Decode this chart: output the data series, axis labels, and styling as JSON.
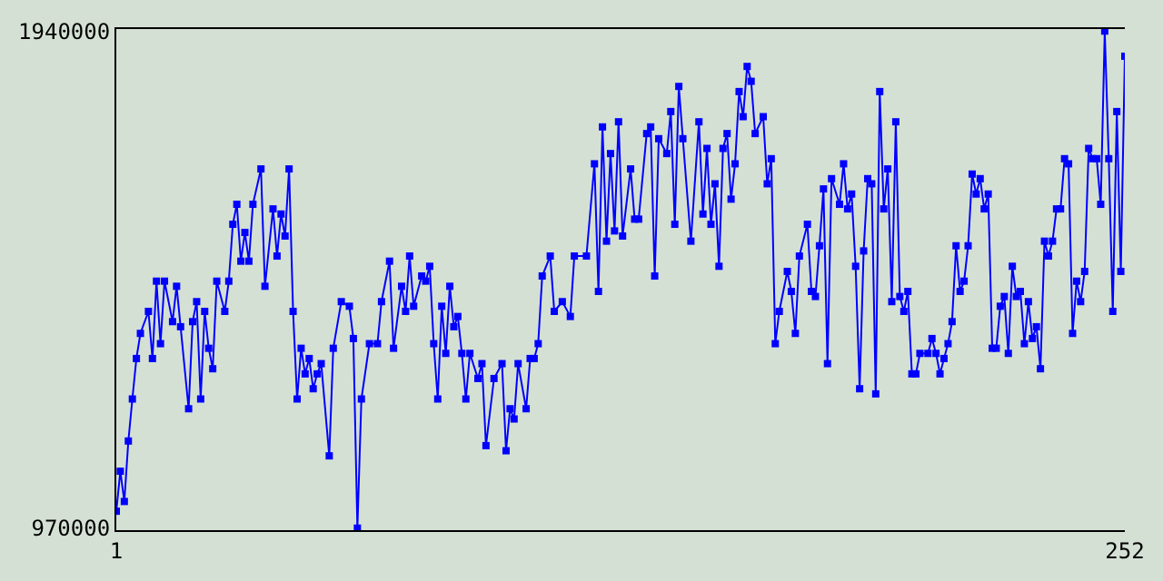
{
  "chart_data": {
    "type": "line",
    "marker": "square",
    "line_style": "solid",
    "grid": false,
    "xlim": [
      1,
      252
    ],
    "xticks": [
      1,
      252
    ],
    "ylim": [
      970000,
      1940000
    ],
    "yticks": [
      970000,
      1940000
    ],
    "x": [
      1,
      2,
      3,
      4,
      5,
      6,
      7,
      9,
      10,
      11,
      12,
      13,
      15,
      16,
      17,
      19,
      20,
      21,
      22,
      23,
      24,
      25,
      26,
      28,
      29,
      30,
      31,
      32,
      33,
      34,
      35,
      37,
      38,
      40,
      41,
      42,
      43,
      44,
      45,
      46,
      47,
      48,
      49,
      50,
      51,
      52,
      54,
      55,
      57,
      59,
      60,
      61,
      62,
      64,
      66,
      67,
      69,
      70,
      72,
      73,
      74,
      75,
      77,
      78,
      79,
      80,
      81,
      82,
      83,
      84,
      85,
      86,
      87,
      88,
      89,
      91,
      92,
      93,
      95,
      97,
      98,
      99,
      100,
      101,
      103,
      104,
      105,
      106,
      107,
      109,
      110,
      112,
      114,
      115,
      118,
      120,
      121,
      122,
      123,
      124,
      125,
      126,
      127,
      129,
      130,
      131,
      133,
      134,
      135,
      136,
      138,
      139,
      140,
      141,
      142,
      144,
      146,
      147,
      148,
      149,
      150,
      151,
      152,
      153,
      154,
      155,
      156,
      157,
      158,
      159,
      160,
      162,
      163,
      164,
      165,
      166,
      168,
      169,
      170,
      171,
      173,
      174,
      175,
      176,
      177,
      178,
      179,
      181,
      182,
      183,
      184,
      185,
      186,
      187,
      188,
      189,
      190,
      191,
      192,
      193,
      194,
      195,
      196,
      197,
      198,
      199,
      200,
      201,
      203,
      204,
      205,
      206,
      207,
      208,
      209,
      210,
      211,
      212,
      213,
      214,
      215,
      216,
      217,
      218,
      219,
      220,
      221,
      222,
      223,
      224,
      225,
      226,
      227,
      228,
      229,
      230,
      231,
      232,
      233,
      234,
      235,
      236,
      237,
      238,
      239,
      240,
      241,
      242,
      243,
      244,
      245,
      246,
      247,
      248,
      249,
      250,
      251,
      252
    ],
    "series": [
      {
        "color": "#0000ff",
        "values": [
          1003000,
          1081000,
          1022000,
          1140000,
          1222000,
          1301000,
          1350000,
          1393000,
          1301000,
          1452000,
          1330000,
          1452000,
          1373000,
          1442000,
          1363000,
          1203000,
          1373000,
          1412000,
          1222000,
          1393000,
          1321000,
          1281000,
          1452000,
          1393000,
          1452000,
          1563000,
          1602000,
          1491000,
          1547000,
          1491000,
          1602000,
          1671000,
          1442000,
          1593000,
          1501000,
          1583000,
          1540000,
          1671000,
          1393000,
          1222000,
          1321000,
          1271000,
          1301000,
          1242000,
          1271000,
          1291000,
          1111000,
          1321000,
          1412000,
          1403000,
          1340000,
          970000,
          1222000,
          1330000,
          1330000,
          1412000,
          1491000,
          1321000,
          1442000,
          1393000,
          1501000,
          1403000,
          1462000,
          1452000,
          1481000,
          1330000,
          1222000,
          1403000,
          1311000,
          1442000,
          1363000,
          1383000,
          1311000,
          1222000,
          1311000,
          1262000,
          1291000,
          1131000,
          1262000,
          1291000,
          1121000,
          1203000,
          1183000,
          1291000,
          1203000,
          1301000,
          1301000,
          1330000,
          1462000,
          1501000,
          1393000,
          1412000,
          1383000,
          1501000,
          1501000,
          1681000,
          1432000,
          1753000,
          1530000,
          1701000,
          1550000,
          1763000,
          1540000,
          1671000,
          1573000,
          1573000,
          1740000,
          1753000,
          1462000,
          1730000,
          1701000,
          1783000,
          1563000,
          1832000,
          1730000,
          1530000,
          1763000,
          1583000,
          1711000,
          1563000,
          1642000,
          1481000,
          1711000,
          1740000,
          1612000,
          1681000,
          1822000,
          1773000,
          1871000,
          1842000,
          1740000,
          1773000,
          1642000,
          1691000,
          1330000,
          1393000,
          1471000,
          1432000,
          1350000,
          1501000,
          1563000,
          1432000,
          1422000,
          1521000,
          1632000,
          1291000,
          1652000,
          1602000,
          1681000,
          1593000,
          1622000,
          1481000,
          1242000,
          1511000,
          1652000,
          1642000,
          1232000,
          1822000,
          1593000,
          1671000,
          1412000,
          1763000,
          1422000,
          1393000,
          1432000,
          1271000,
          1271000,
          1311000,
          1311000,
          1340000,
          1311000,
          1271000,
          1301000,
          1330000,
          1373000,
          1521000,
          1432000,
          1452000,
          1521000,
          1661000,
          1622000,
          1652000,
          1593000,
          1622000,
          1321000,
          1321000,
          1403000,
          1422000,
          1311000,
          1481000,
          1422000,
          1432000,
          1330000,
          1412000,
          1340000,
          1363000,
          1281000,
          1530000,
          1501000,
          1530000,
          1593000,
          1593000,
          1691000,
          1681000,
          1350000,
          1452000,
          1412000,
          1471000,
          1711000,
          1691000,
          1691000,
          1602000,
          1940000,
          1691000,
          1393000,
          1783000,
          1471000,
          1891000
        ]
      }
    ]
  }
}
